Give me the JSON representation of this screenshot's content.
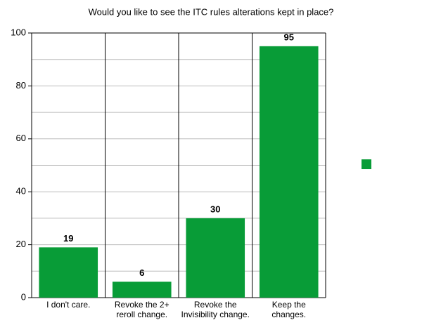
{
  "chart_data": {
    "type": "bar",
    "title": "Would you like to see the ITC rules alterations kept in place?",
    "categories": [
      "I don't care.",
      "Revoke the 2+ reroll change.",
      "Revoke the Invisibility change.",
      "Keep the changes."
    ],
    "values": [
      19,
      6,
      30,
      95
    ],
    "color": "#089c37",
    "ylim": [
      0,
      100
    ],
    "yticks": [
      0,
      20,
      40,
      60,
      80,
      100
    ],
    "minor_yticks": [
      10,
      30,
      50,
      70,
      90
    ],
    "grid": true,
    "legend": "right"
  }
}
